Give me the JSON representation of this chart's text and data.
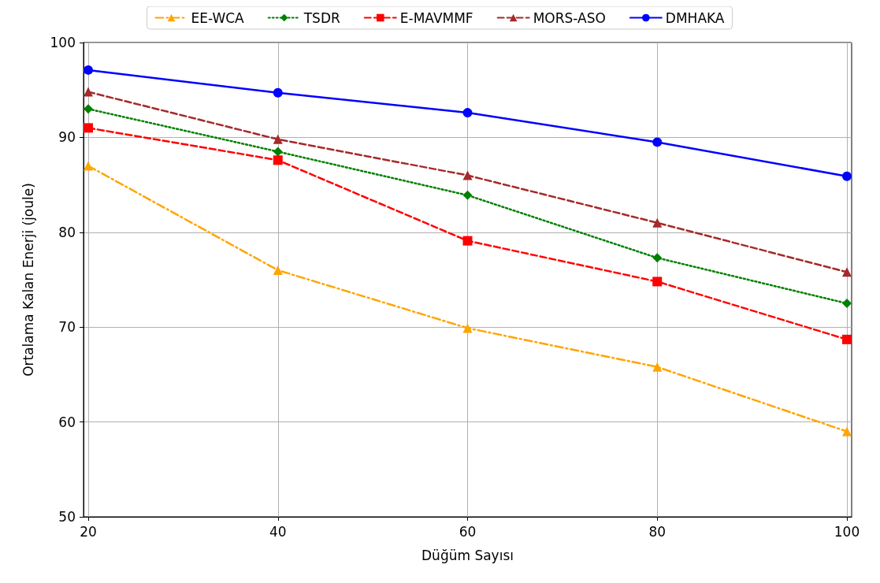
{
  "chart_data": {
    "type": "line",
    "xlabel": "Düğüm Sayısı",
    "ylabel": "Ortalama Kalan Enerji (joule)",
    "x": [
      20,
      40,
      60,
      80,
      100
    ],
    "xlim": [
      19.5,
      100.5
    ],
    "xticks": [
      20,
      40,
      60,
      80,
      100
    ],
    "ylim": [
      50,
      100
    ],
    "yticks": [
      50,
      60,
      70,
      80,
      90,
      100
    ],
    "grid": true,
    "legend": "top",
    "series": [
      {
        "name": "EE-WCA",
        "color": "#ffa500",
        "marker": "triangle",
        "line_style": "dashdot",
        "values": [
          87,
          76,
          69.9,
          65.8,
          59
        ]
      },
      {
        "name": "TSDR",
        "color": "#008000",
        "marker": "diamond",
        "line_style": "dotted",
        "values": [
          93,
          88.5,
          83.9,
          77.3,
          72.5
        ]
      },
      {
        "name": "E-MAVMMF",
        "color": "#ff0000",
        "marker": "square",
        "line_style": "dashed",
        "values": [
          91,
          87.6,
          79.1,
          74.8,
          68.7
        ]
      },
      {
        "name": "MORS-ASO",
        "color": "#a52a2a",
        "marker": "triangle",
        "line_style": "dashed",
        "values": [
          94.8,
          89.8,
          86,
          81,
          75.8
        ]
      },
      {
        "name": "DMHAKA",
        "color": "#0000ff",
        "marker": "circle",
        "line_style": "solid",
        "values": [
          97.1,
          94.7,
          92.6,
          89.5,
          85.9
        ]
      }
    ]
  }
}
